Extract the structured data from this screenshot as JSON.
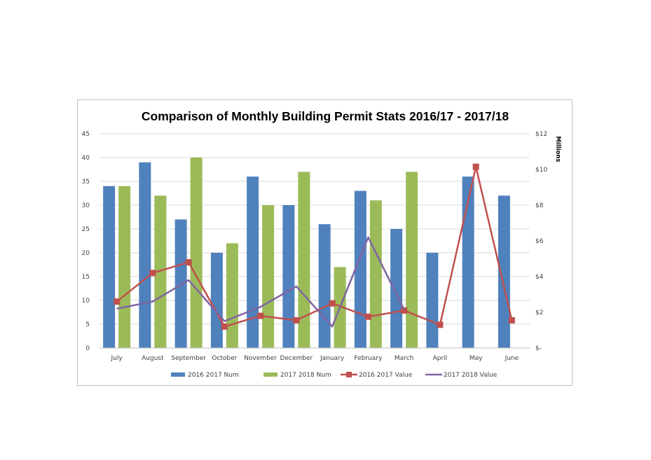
{
  "chart_data": {
    "type": "bar",
    "title": "Comparison of Monthly Building Permit Stats 2016/17 - 2017/18",
    "categories": [
      "July",
      "August",
      "September",
      "October",
      "November",
      "December",
      "January",
      "February",
      "March",
      "April",
      "May",
      "June"
    ],
    "y_left": {
      "ylim": [
        0,
        45
      ],
      "ticks": [
        0,
        5,
        10,
        15,
        20,
        25,
        30,
        35,
        40,
        45
      ]
    },
    "y_right": {
      "label": "Millions",
      "ylim": [
        0,
        12
      ],
      "ticks": [
        0,
        2,
        4,
        6,
        8,
        10,
        12
      ],
      "tick_labels": [
        "$-",
        "$2",
        "$4",
        "$6",
        "$8",
        "$10",
        "$12"
      ]
    },
    "series": [
      {
        "name": "2016 2017 Num",
        "kind": "bar",
        "axis": "left",
        "color": "#4f81bd",
        "values": [
          34,
          39,
          27,
          20,
          36,
          30,
          26,
          33,
          25,
          20,
          36,
          32
        ]
      },
      {
        "name": "2017 2018 Num",
        "kind": "bar",
        "axis": "left",
        "color": "#9bbb59",
        "values": [
          34,
          32,
          40,
          22,
          30,
          37,
          17,
          31,
          37,
          null,
          null,
          null
        ]
      },
      {
        "name": "2016 2017 Value",
        "kind": "line",
        "axis": "right",
        "color": "#c0504d",
        "marker": "square",
        "values": [
          2.6,
          4.2,
          4.8,
          1.2,
          1.8,
          1.55,
          2.5,
          1.75,
          2.1,
          1.3,
          10.15,
          1.55
        ]
      },
      {
        "name": "2017 2018 Value",
        "kind": "line",
        "axis": "right",
        "color": "#8064a2",
        "marker": "none",
        "values": [
          2.2,
          2.6,
          3.8,
          1.5,
          2.3,
          3.45,
          1.2,
          6.2,
          2.15,
          null,
          null,
          null
        ]
      }
    ],
    "grid": true,
    "legend_position": "bottom"
  }
}
